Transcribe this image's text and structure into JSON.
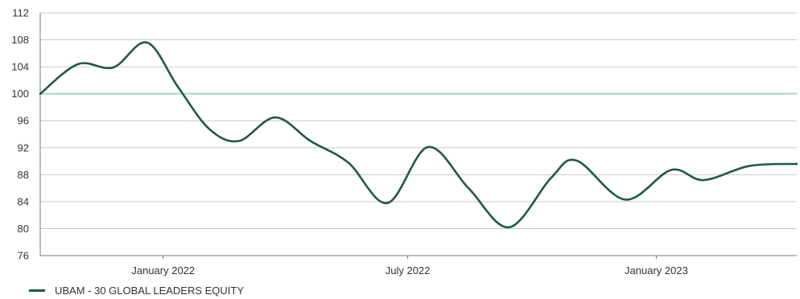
{
  "chart_data": {
    "type": "line",
    "title": "",
    "xlabel": "",
    "ylabel": "",
    "ylim": [
      76,
      112
    ],
    "y_ticks": [
      76,
      80,
      84,
      88,
      92,
      96,
      100,
      104,
      108,
      112
    ],
    "y_tick_labels": [
      "76",
      "80",
      "84",
      "88",
      "92",
      "96",
      "100",
      "104",
      "108",
      "112"
    ],
    "x_ticks": [
      {
        "date": "2022-01-01",
        "label": "January 2022"
      },
      {
        "date": "2022-07-01",
        "label": "July 2022"
      },
      {
        "date": "2023-01-01",
        "label": "January 2023"
      }
    ],
    "xlim": [
      "2021-10-02",
      "2023-04-15"
    ],
    "reference_line": {
      "y": 100,
      "color": "#a8d5c8"
    },
    "grid": true,
    "legend_position": "bottom-left",
    "series": [
      {
        "name": "UBAM - 30 GLOBAL LEADERS EQUITY",
        "color": "#1f5a43",
        "points": [
          [
            "2021-10-02",
            100.0
          ],
          [
            "2021-10-30",
            104.4
          ],
          [
            "2021-11-25",
            103.9
          ],
          [
            "2021-12-20",
            107.6
          ],
          [
            "2022-01-12",
            101.0
          ],
          [
            "2022-02-04",
            94.8
          ],
          [
            "2022-02-26",
            93.0
          ],
          [
            "2022-03-25",
            96.5
          ],
          [
            "2022-04-20",
            93.0
          ],
          [
            "2022-05-18",
            89.8
          ],
          [
            "2022-06-16",
            83.8
          ],
          [
            "2022-07-16",
            92.1
          ],
          [
            "2022-08-15",
            86.0
          ],
          [
            "2022-09-14",
            80.2
          ],
          [
            "2022-10-15",
            87.5
          ],
          [
            "2022-11-03",
            90.1
          ],
          [
            "2022-12-09",
            84.3
          ],
          [
            "2023-01-12",
            88.7
          ],
          [
            "2023-02-05",
            87.2
          ],
          [
            "2023-03-11",
            89.3
          ],
          [
            "2023-04-15",
            89.6
          ]
        ]
      }
    ]
  }
}
